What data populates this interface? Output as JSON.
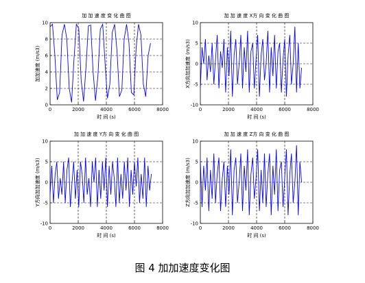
{
  "caption": "图 4  加加速度变化图",
  "chart_data": [
    {
      "type": "line",
      "title": "加 加 速 度 变 化 曲 图",
      "xlabel": "时 间 (s)",
      "ylabel": "加加速度 (m/s3)",
      "xlim": [
        0,
        8000
      ],
      "ylim": [
        0,
        10
      ],
      "xticks": [
        0,
        2000,
        4000,
        6000,
        8000
      ],
      "yticks": [
        0,
        2,
        4,
        6,
        8,
        10
      ],
      "grid": "dashed",
      "color": "#0000ff",
      "x": [
        0,
        170,
        340,
        510,
        680,
        850,
        1020,
        1190,
        1360,
        1530,
        1700,
        1870,
        2040,
        2210,
        2380,
        2550,
        2720,
        2890,
        3060,
        3230,
        3400,
        3570,
        3740,
        3910,
        4080,
        4250,
        4420,
        4590,
        4760,
        4930,
        5100,
        5270,
        5440,
        5610,
        5780,
        5950,
        6120,
        6290,
        6460,
        6630,
        6800,
        6970,
        7140
      ],
      "values": [
        9.5,
        9.8,
        6.0,
        0.6,
        1.5,
        8.5,
        9.8,
        8.0,
        2.0,
        0.3,
        5.5,
        9.8,
        9.3,
        3.0,
        0.4,
        4.5,
        9.6,
        9.7,
        4.0,
        0.5,
        3.5,
        9.2,
        9.8,
        5.0,
        0.8,
        2.5,
        8.8,
        9.8,
        6.5,
        1.0,
        1.8,
        8.0,
        9.8,
        7.5,
        1.5,
        1.2,
        7.0,
        9.8,
        8.5,
        2.5,
        1.0,
        6.0,
        7.5
      ]
    },
    {
      "type": "line",
      "title": "加 加 速 度 X方 向 变 化 曲 图",
      "xlabel": "时 间 (s)",
      "ylabel": "X方向加加速度 (m/s3)",
      "xlim": [
        0,
        8000
      ],
      "ylim": [
        -10,
        10
      ],
      "xticks": [
        0,
        2000,
        4000,
        6000,
        8000
      ],
      "yticks": [
        -10,
        -5,
        0,
        5,
        10
      ],
      "grid": "dashed",
      "color": "#0000ff",
      "x": [
        0,
        120,
        240,
        360,
        480,
        600,
        720,
        840,
        960,
        1080,
        1200,
        1320,
        1440,
        1560,
        1680,
        1800,
        1920,
        2040,
        2160,
        2280,
        2400,
        2520,
        2640,
        2760,
        2880,
        3000,
        3120,
        3240,
        3360,
        3480,
        3600,
        3720,
        3840,
        3960,
        4080,
        4200,
        4320,
        4440,
        4560,
        4680,
        4800,
        4920,
        5040,
        5160,
        5280,
        5400,
        5520,
        5640,
        5760,
        5880,
        6000,
        6120,
        6240,
        6360,
        6480,
        6600,
        6720,
        6840,
        6960,
        7080,
        7200
      ],
      "values": [
        -6,
        4,
        0,
        6,
        -4,
        2,
        -2,
        5,
        -5,
        1,
        7,
        -6,
        3,
        -1,
        6,
        -7,
        4,
        -3,
        8,
        -8,
        2,
        6,
        -5,
        0,
        7,
        -6,
        4,
        -2,
        8,
        -7,
        3,
        5,
        -6,
        1,
        7,
        -8,
        2,
        6,
        -4,
        0,
        8,
        -7,
        4,
        -3,
        7,
        -6,
        3,
        5,
        -7,
        1,
        6,
        -8,
        2,
        7,
        -5,
        0,
        9,
        -7,
        5,
        -6,
        -1
      ]
    },
    {
      "type": "line",
      "title": "加 加 速 度 Y方 向 变 化 曲 图",
      "xlabel": "时 间 (s)",
      "ylabel": "Y方向加加速度 (m/s3)",
      "xlim": [
        0,
        8000
      ],
      "ylim": [
        -10,
        10
      ],
      "xticks": [
        0,
        2000,
        4000,
        6000,
        8000
      ],
      "yticks": [
        -10,
        -5,
        0,
        5,
        10
      ],
      "grid": "dashed",
      "color": "#0000ff",
      "x": [
        0,
        120,
        240,
        360,
        480,
        600,
        720,
        840,
        960,
        1080,
        1200,
        1320,
        1440,
        1560,
        1680,
        1800,
        1920,
        2040,
        2160,
        2280,
        2400,
        2520,
        2640,
        2760,
        2880,
        3000,
        3120,
        3240,
        3360,
        3480,
        3600,
        3720,
        3840,
        3960,
        4080,
        4200,
        4320,
        4440,
        4560,
        4680,
        4800,
        4920,
        5040,
        5160,
        5280,
        5400,
        5520,
        5640,
        5760,
        5880,
        6000,
        6120,
        6240,
        6360,
        6480,
        6600,
        6720,
        6840,
        6960,
        7080,
        7200
      ],
      "values": [
        -3,
        4,
        -5,
        2,
        5,
        -4,
        1,
        -3,
        5,
        -5,
        3,
        6,
        -6,
        0,
        5,
        -4,
        3,
        -6,
        5,
        2,
        -5,
        6,
        -3,
        1,
        -6,
        5,
        0,
        6,
        -6,
        3,
        -4,
        5,
        -2,
        6,
        -6,
        4,
        -3,
        5,
        1,
        -6,
        6,
        -5,
        2,
        -4,
        5,
        -2,
        6,
        -6,
        3,
        -3,
        5,
        -1,
        6,
        -5,
        2,
        -4,
        6,
        -6,
        4,
        -2,
        2
      ]
    },
    {
      "type": "line",
      "title": "加 加 速 度 Z方 向 变 化 曲 图",
      "xlabel": "时 间 (s)",
      "ylabel": "Z方向加加速度 (m/s3)",
      "xlim": [
        0,
        8000
      ],
      "ylim": [
        -10,
        10
      ],
      "xticks": [
        0,
        2000,
        4000,
        6000,
        8000
      ],
      "yticks": [
        -10,
        -5,
        0,
        5,
        10
      ],
      "grid": "dashed",
      "color": "#0000ff",
      "x": [
        0,
        120,
        240,
        360,
        480,
        600,
        720,
        840,
        960,
        1080,
        1200,
        1320,
        1440,
        1560,
        1680,
        1800,
        1920,
        2040,
        2160,
        2280,
        2400,
        2520,
        2640,
        2760,
        2880,
        3000,
        3120,
        3240,
        3360,
        3480,
        3600,
        3720,
        3840,
        3960,
        4080,
        4200,
        4320,
        4440,
        4560,
        4680,
        4800,
        4920,
        5040,
        5160,
        5280,
        5400,
        5520,
        5640,
        5760,
        5880,
        6000,
        6120,
        6240,
        6360,
        6480,
        6600,
        6720,
        6840,
        6960,
        7080,
        7200
      ],
      "values": [
        5,
        -6,
        4,
        -2,
        6,
        -7,
        3,
        -4,
        7,
        -5,
        2,
        6,
        -7,
        1,
        5,
        -6,
        4,
        -3,
        8,
        -8,
        3,
        6,
        -5,
        0,
        7,
        -7,
        4,
        -2,
        8,
        -8,
        2,
        6,
        -4,
        1,
        8,
        -7,
        3,
        -5,
        7,
        -6,
        2,
        7,
        -8,
        4,
        -3,
        8,
        -7,
        3,
        5,
        -6,
        1,
        8,
        -8,
        2,
        7,
        -5,
        0,
        9,
        -8,
        5,
        0
      ]
    }
  ]
}
